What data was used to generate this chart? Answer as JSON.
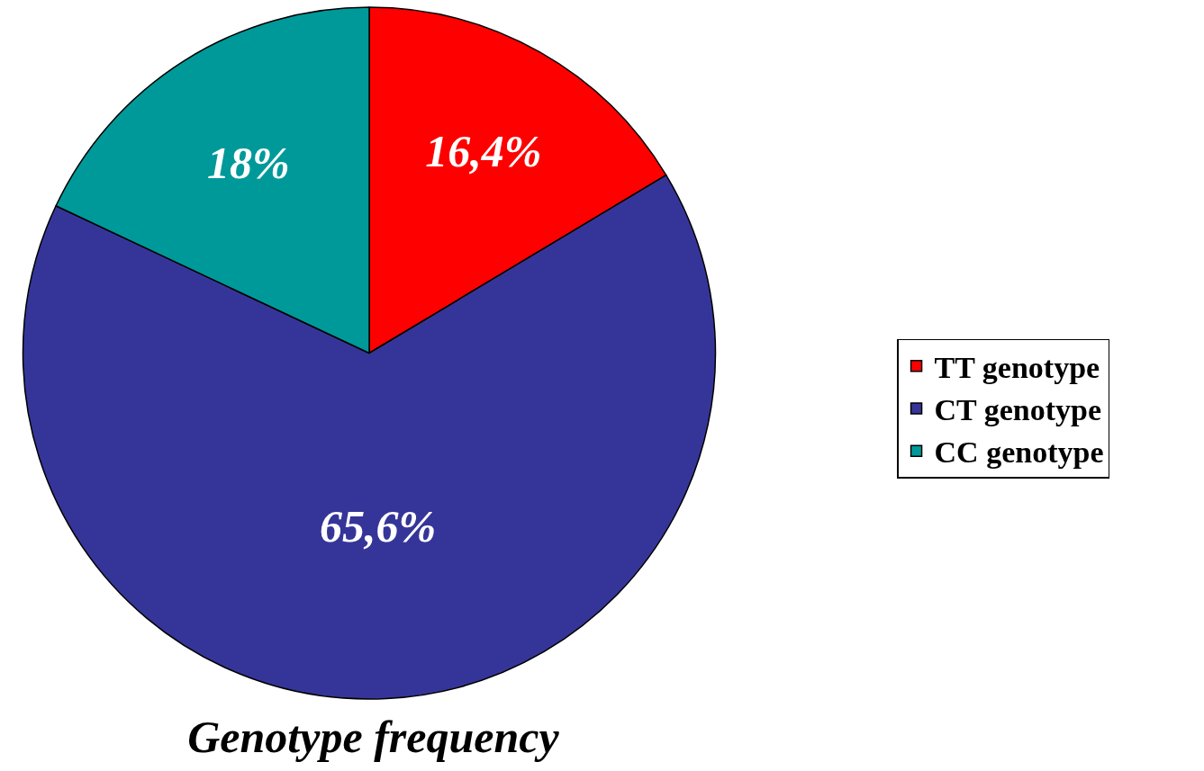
{
  "chart_data": {
    "type": "pie",
    "title": "Genotype frequency",
    "categories": [
      "TT genotype",
      "CT genotype",
      "CC genotype"
    ],
    "values": [
      16.4,
      65.6,
      18
    ],
    "value_labels": [
      "16,4%",
      "65,6%",
      "18%"
    ],
    "colors": [
      "#ff0000",
      "#353599",
      "#009999"
    ],
    "legend": "right"
  }
}
